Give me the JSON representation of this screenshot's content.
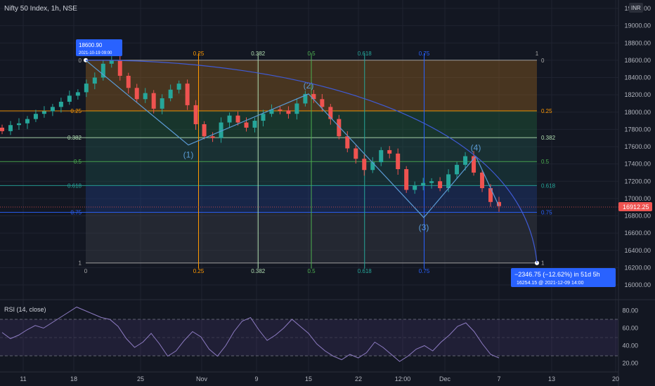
{
  "header": {
    "symbol": "Nifty 50 Index, 1h, NSE",
    "currency_badge": "INR"
  },
  "price_axis": {
    "ticks": [
      "19200.00",
      "19000.00",
      "18800.00",
      "18600.00",
      "18400.00",
      "18200.00",
      "18000.00",
      "17800.00",
      "17600.00",
      "17400.00",
      "17200.00",
      "17000.00",
      "16800.00",
      "16600.00",
      "16400.00",
      "16200.00",
      "16000.00"
    ],
    "last_price_label": "16912.25"
  },
  "time_axis": {
    "ticks": [
      "11",
      "18",
      "25",
      "Nov",
      "9",
      "15",
      "22",
      "12:00",
      "Dec",
      "7",
      "13",
      "20"
    ]
  },
  "callouts": {
    "start_price": "18600.90",
    "start_time": "2021-10-19 09:00",
    "measure_line1": "−2346.75 (−12.62%) in 51d 5h",
    "measure_line2": "16254.15 @ 2021-12-09  14:00"
  },
  "rsi": {
    "title": "RSI (14, close)",
    "ticks": [
      "80.00",
      "60.00",
      "40.00",
      "20.00"
    ],
    "upper_band": 70,
    "lower_band": 30,
    "midline": 50,
    "range": [
      10,
      90
    ]
  },
  "chart_data": [
    {
      "type": "candlestick",
      "title": "Nifty 50 Index, 1h, NSE",
      "ylim": [
        15990,
        19230
      ],
      "x_dates": [
        "11",
        "18",
        "25",
        "Nov",
        "9",
        "15",
        "22",
        "12:00",
        "Dec",
        "7",
        "13",
        "20"
      ],
      "last_price": 16912.25,
      "fib_time_levels": [
        0,
        0.25,
        0.382,
        0.5,
        0.618,
        0.75,
        1
      ],
      "fib_price_levels": [
        {
          "label": "0",
          "price": 18600.9,
          "color": "#aaaaaa"
        },
        {
          "label": "0.25",
          "price": 18014.2,
          "color": "#ff9800"
        },
        {
          "label": "0.382",
          "price": 17704.4,
          "color": "#b2dfb2"
        },
        {
          "label": "0.5",
          "price": 17427.5,
          "color": "#4caf50"
        },
        {
          "label": "0.618",
          "price": 17150.5,
          "color": "#26a69a"
        },
        {
          "label": "0.75",
          "price": 16840.8,
          "color": "#2962ff"
        },
        {
          "label": "1",
          "price": 16254.15,
          "color": "#aaaaaa"
        }
      ],
      "wave_points": [
        {
          "label": "",
          "price": 18600
        },
        {
          "label": "(1)",
          "price": 17620
        },
        {
          "label": "(2)",
          "price": 18210
        },
        {
          "label": "(3)",
          "price": 16780
        },
        {
          "label": "(4)",
          "price": 17490
        }
      ],
      "close_path": [
        17780,
        17850,
        17870,
        17920,
        17980,
        18010,
        18060,
        18120,
        18190,
        18230,
        18330,
        18400,
        18560,
        18600,
        18420,
        18280,
        18150,
        18220,
        18040,
        18160,
        18260,
        18330,
        18080,
        17860,
        17720,
        17700,
        17880,
        17960,
        17880,
        17820,
        17900,
        17980,
        18030,
        18020,
        17980,
        18100,
        18210,
        18150,
        18060,
        17920,
        17720,
        17580,
        17460,
        17330,
        17420,
        17560,
        17520,
        17340,
        17100,
        17150,
        17180,
        17200,
        17120,
        17280,
        17390,
        17490,
        17300,
        17120,
        16960,
        16912
      ]
    },
    {
      "type": "line",
      "title": "RSI (14, close)",
      "ylim": [
        10,
        90
      ],
      "values": [
        55,
        48,
        52,
        58,
        63,
        60,
        66,
        72,
        78,
        84,
        80,
        76,
        72,
        70,
        62,
        48,
        38,
        44,
        54,
        42,
        28,
        34,
        46,
        56,
        50,
        36,
        28,
        40,
        56,
        68,
        72,
        58,
        46,
        52,
        60,
        70,
        62,
        54,
        42,
        34,
        28,
        24,
        30,
        26,
        32,
        44,
        38,
        30,
        22,
        28,
        36,
        40,
        34,
        44,
        52,
        62,
        66,
        56,
        42,
        30,
        26
      ]
    }
  ]
}
